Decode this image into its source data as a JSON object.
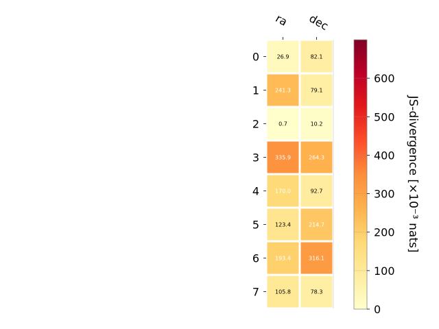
{
  "chart_data": {
    "type": "heatmap",
    "title": "",
    "xlabel": "",
    "ylabel": "",
    "columns": [
      "ra",
      "dec"
    ],
    "rows": [
      "0",
      "1",
      "2",
      "3",
      "4",
      "5",
      "6",
      "7"
    ],
    "values": [
      [
        26.9,
        82.1
      ],
      [
        241.3,
        79.1
      ],
      [
        0.7,
        10.2
      ],
      [
        335.9,
        264.3
      ],
      [
        170.0,
        92.7
      ],
      [
        123.4,
        214.7
      ],
      [
        193.4,
        316.1
      ],
      [
        105.8,
        78.3
      ]
    ],
    "cell_labels": [
      [
        "26.9",
        "82.1"
      ],
      [
        "241.3",
        "79.1"
      ],
      [
        "0.7",
        "10.2"
      ],
      [
        "335.9",
        "264.3"
      ],
      [
        "170.0",
        "92.7"
      ],
      [
        "123.4",
        "214.7"
      ],
      [
        "193.4",
        "316.1"
      ],
      [
        "105.8",
        "78.3"
      ]
    ],
    "colorbar": {
      "label": "JS-divergence [×10⁻³ nats]",
      "range": [
        0,
        700
      ],
      "ticks": [
        "0",
        "100",
        "200",
        "300",
        "400",
        "500",
        "600"
      ],
      "tick_values": [
        0,
        100,
        200,
        300,
        400,
        500,
        600
      ],
      "colormap": "YlOrRd"
    },
    "grid": false
  }
}
